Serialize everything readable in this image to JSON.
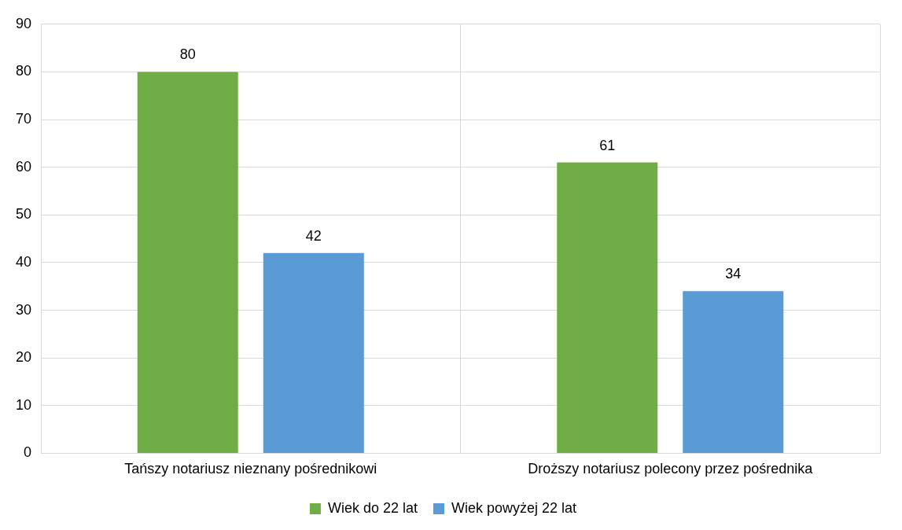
{
  "chart_data": {
    "type": "bar",
    "categories": [
      "Tańszy notariusz nieznany pośrednikowi",
      "Droższy notariusz polecony przez pośrednika"
    ],
    "series": [
      {
        "name": "Wiek do 22 lat",
        "color": "#70ad47",
        "values": [
          80,
          61
        ]
      },
      {
        "name": "Wiek powyżej 22 lat",
        "color": "#5b9bd5",
        "values": [
          42,
          34
        ]
      }
    ],
    "ylim": [
      0,
      90
    ],
    "yticks": [
      0,
      10,
      20,
      30,
      40,
      50,
      60,
      70,
      80,
      90
    ],
    "grid": true,
    "legend": "bottom",
    "data_labels": true
  }
}
